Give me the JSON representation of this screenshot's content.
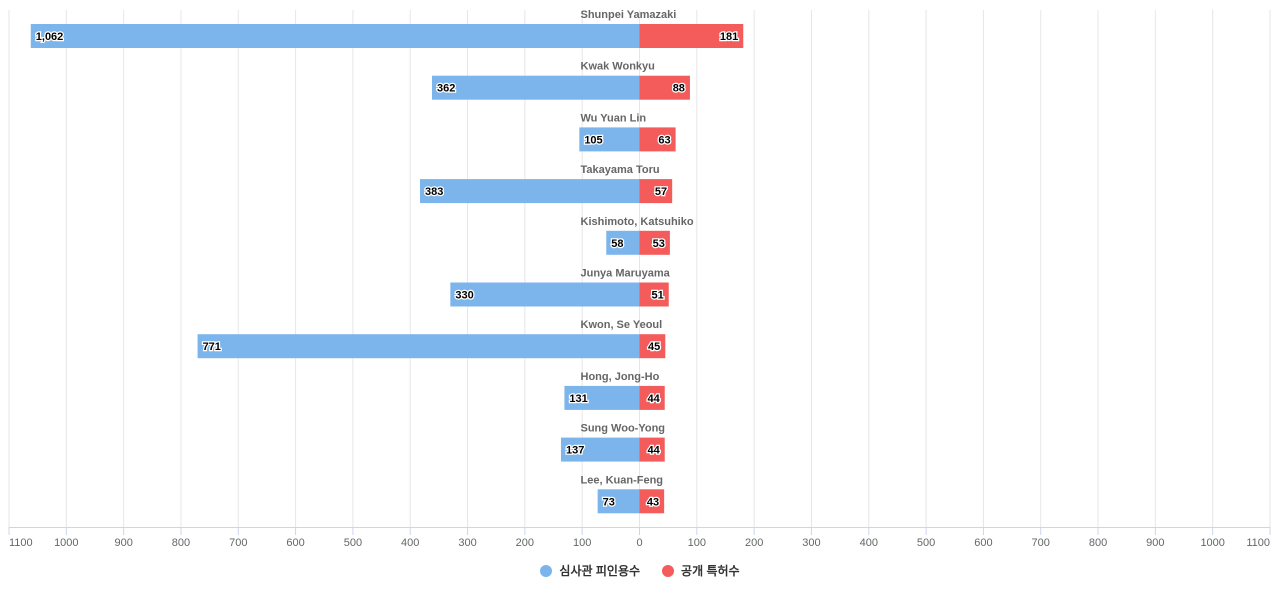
{
  "chart_data": {
    "type": "bar",
    "orientation": "horizontal-diverging",
    "categories": [
      "Shunpei Yamazaki",
      "Kwak Wonkyu",
      "Wu Yuan Lin",
      "Takayama Toru",
      "Kishimoto, Katsuhiko",
      "Junya Maruyama",
      "Kwon, Se Yeoul",
      "Hong, Jong-Ho",
      "Sung Woo-Yong",
      "Lee, Kuan-Feng"
    ],
    "series": [
      {
        "name": "심사관 피인용수",
        "color": "#7cb5ec",
        "side": "left",
        "values": [
          1062,
          362,
          105,
          383,
          58,
          330,
          771,
          131,
          137,
          73
        ],
        "labels": [
          "1,062",
          "362",
          "105",
          "383",
          "58",
          "330",
          "771",
          "131",
          "137",
          "73"
        ]
      },
      {
        "name": "공개 특허수",
        "color": "#f45b5b",
        "side": "right",
        "values": [
          181,
          88,
          63,
          57,
          53,
          51,
          45,
          44,
          44,
          43
        ],
        "labels": [
          "181",
          "88",
          "63",
          "57",
          "53",
          "51",
          "45",
          "44",
          "44",
          "43"
        ]
      }
    ],
    "xlim": [
      -1100,
      1100
    ],
    "xticks": [
      "1100",
      "1000",
      "900",
      "800",
      "700",
      "600",
      "500",
      "400",
      "300",
      "200",
      "100",
      "0",
      "100",
      "200",
      "300",
      "400",
      "500",
      "600",
      "700",
      "800",
      "900",
      "1000",
      "1100"
    ],
    "grid": true,
    "legend_position": "bottom-center"
  }
}
